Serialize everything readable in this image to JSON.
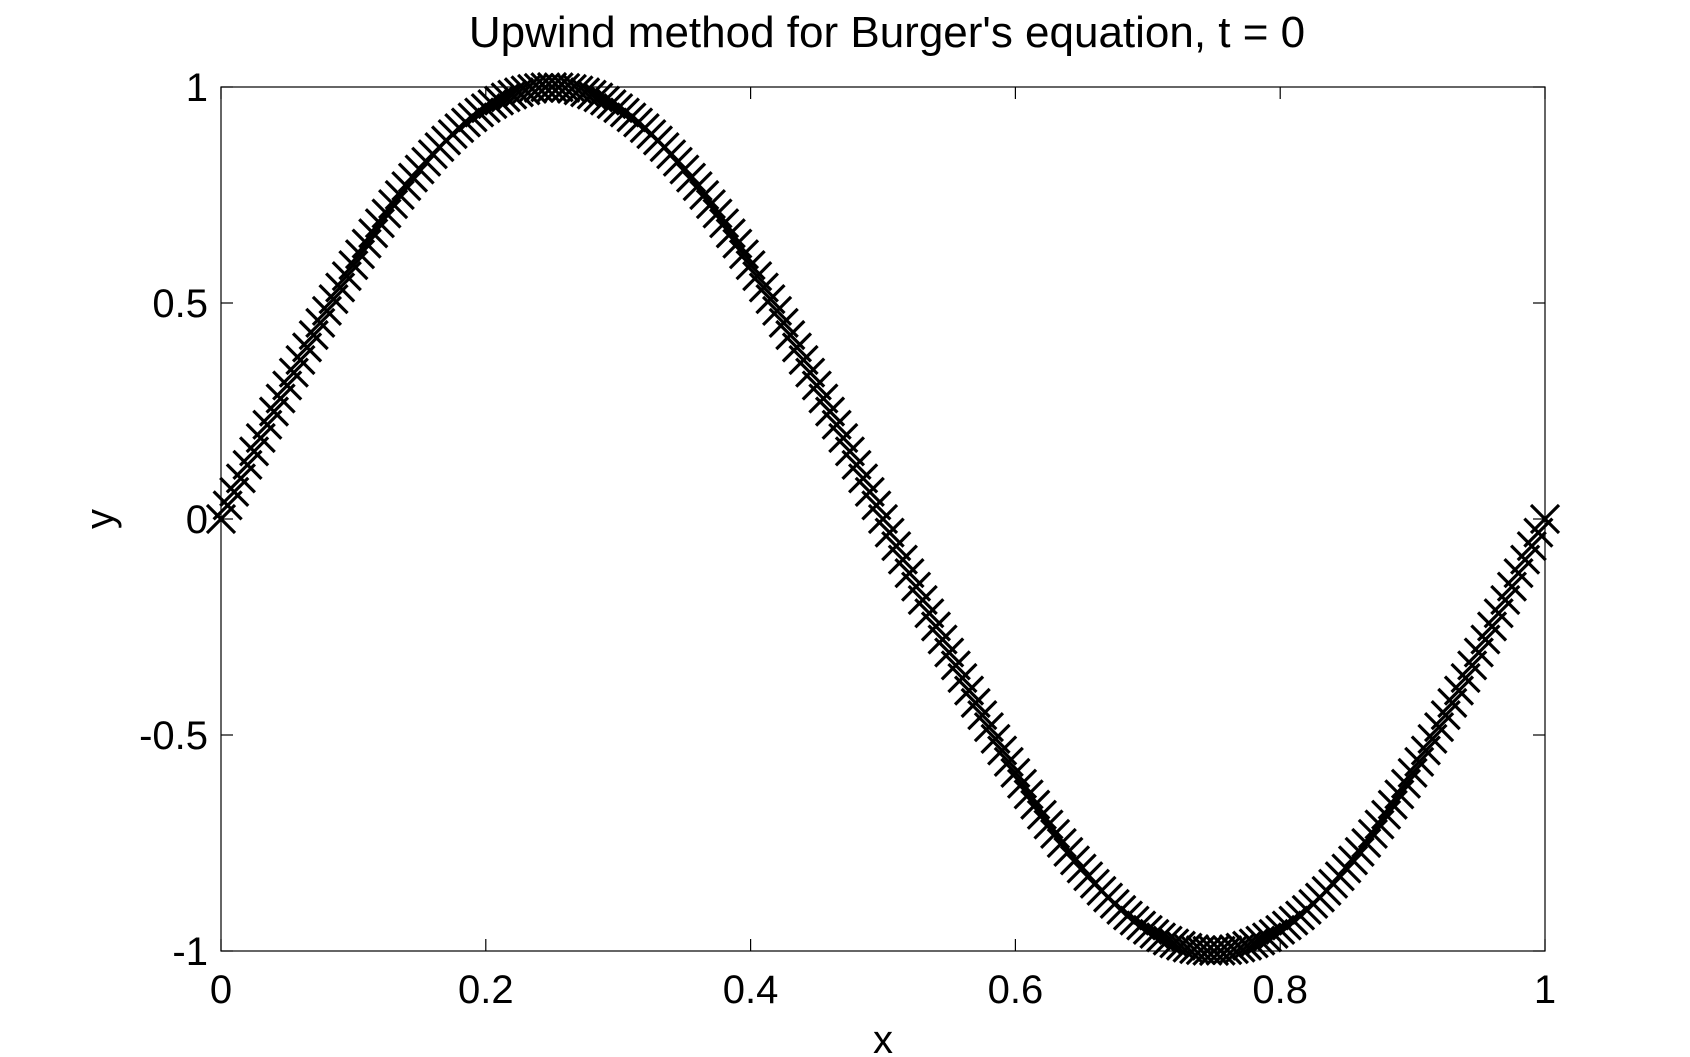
{
  "chart_data": {
    "type": "scatter",
    "title": "Upwind method for Burger's equation, t = 0",
    "xlabel": "x",
    "ylabel": "y",
    "xlim": [
      0,
      1
    ],
    "ylim": [
      -1,
      1
    ],
    "x_ticks": [
      "0",
      "0.2",
      "0.4",
      "0.6",
      "0.8",
      "1"
    ],
    "y_ticks": [
      "-1",
      "-0.5",
      "0",
      "0.5",
      "1"
    ],
    "grid": false,
    "marker": "x",
    "marker_color": "#000000",
    "function": "y = sin(2*pi*x)",
    "n_points": 201,
    "series": [
      {
        "x": [
          0,
          0.05,
          0.1,
          0.15,
          0.2,
          0.25,
          0.3,
          0.35,
          0.4,
          0.45,
          0.5,
          0.55,
          0.6,
          0.65,
          0.7,
          0.75,
          0.8,
          0.85,
          0.9,
          0.95,
          1
        ],
        "values": [
          0,
          0.309,
          0.588,
          0.809,
          0.951,
          1,
          0.951,
          0.809,
          0.588,
          0.309,
          0,
          -0.309,
          -0.588,
          -0.809,
          -0.951,
          -1,
          -0.951,
          -0.809,
          -0.588,
          -0.309,
          0
        ]
      }
    ]
  }
}
